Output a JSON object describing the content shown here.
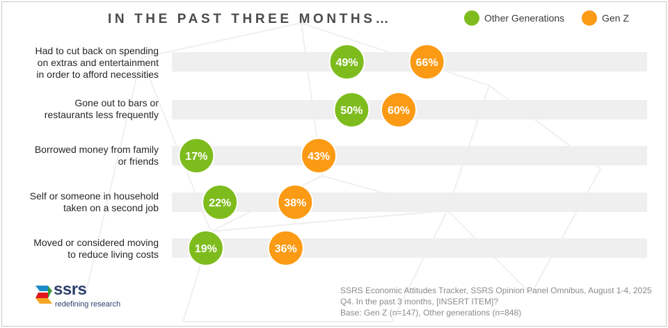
{
  "chart_data": {
    "type": "dot",
    "title": "IN THE PAST THREE MONTHS…",
    "categories": [
      [
        "Had to cut back on spending",
        "on extras and entertainment",
        "in order to afford necessities"
      ],
      [
        "Gone out to bars or",
        "restaurants less frequently"
      ],
      [
        "Borrowed money from family",
        "or friends"
      ],
      [
        "Self or someone in household",
        "taken on a second job"
      ],
      [
        "Moved or considered moving",
        "to reduce living costs"
      ]
    ],
    "series": [
      {
        "name": "Other Generations",
        "color": "#7ebc1e",
        "values": [
          49,
          50,
          17,
          22,
          19
        ],
        "labels": [
          "49%",
          "50%",
          "17%",
          "22%",
          "19%"
        ]
      },
      {
        "name": "Gen Z",
        "color": "#fb9a14",
        "values": [
          66,
          60,
          43,
          38,
          36
        ],
        "labels": [
          "66%",
          "60%",
          "43%",
          "38%",
          "36%"
        ]
      }
    ],
    "unit": "%",
    "legend_position": "top-right"
  },
  "legend": {
    "other_label": "Other Generations",
    "genz_label": "Gen Z"
  },
  "logo": {
    "name": "ssrs",
    "tagline": "redefining research"
  },
  "source": {
    "line1": "SSRS Economic Attitudes Tracker, SSRS Opinion Panel Omnibus, August 1-4, 2025",
    "line2": "Q4. In the past 3 months, [INSERT ITEM]?",
    "line3": "Base: Gen Z (n=147), Other generations (n=848)"
  }
}
